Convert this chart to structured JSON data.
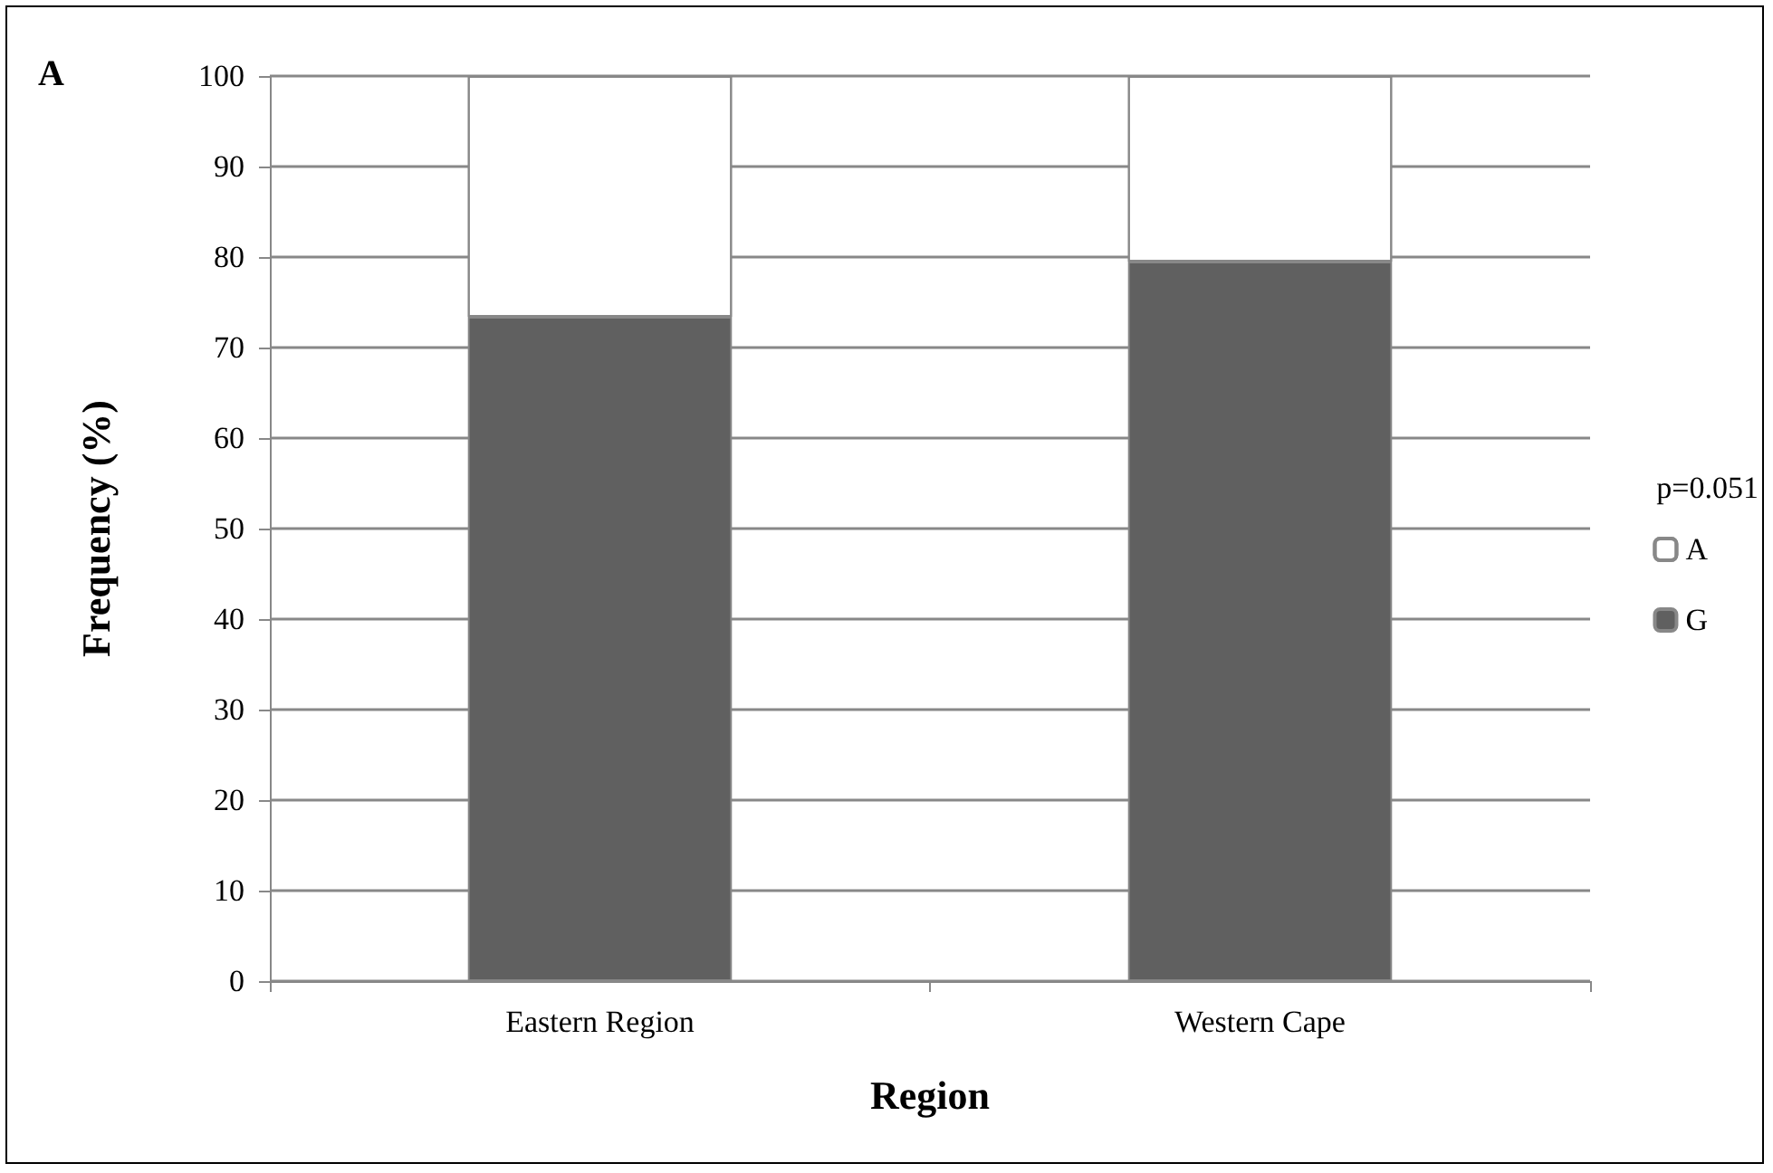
{
  "chart_data": {
    "type": "bar",
    "title": "A",
    "xlabel": "Region",
    "ylabel": "Frequency (%)",
    "categories": [
      "Eastern Region",
      "Western Cape"
    ],
    "series": [
      {
        "name": "G",
        "color": "#606060",
        "values": [
          73.4,
          79.5
        ]
      },
      {
        "name": "A",
        "color": "#ffffff",
        "values": [
          26.6,
          20.5
        ]
      }
    ],
    "stacked": true,
    "ylim": [
      0,
      100
    ],
    "yticks": [
      0,
      10,
      20,
      30,
      40,
      50,
      60,
      70,
      80,
      90,
      100
    ],
    "grid": "y",
    "legend": "right",
    "annotations": [
      "p=0.051"
    ]
  }
}
